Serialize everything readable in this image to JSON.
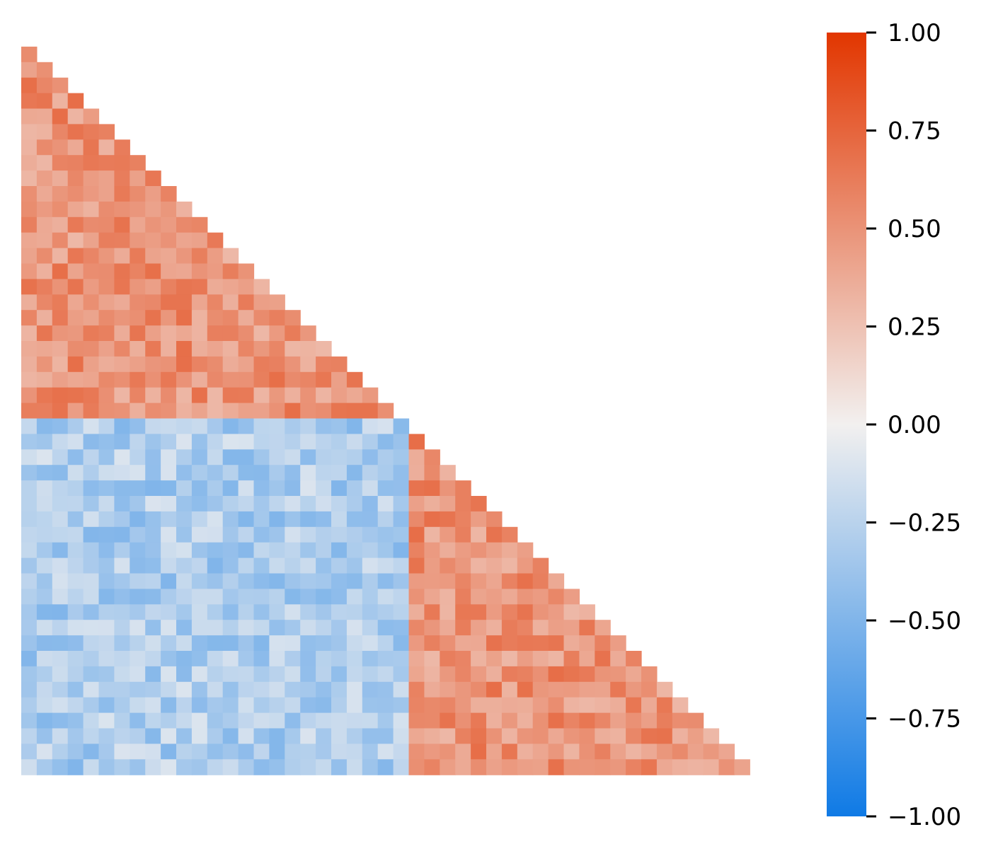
{
  "chart_data": {
    "type": "heatmap",
    "shape": "lower-triangle",
    "n": 48,
    "block_size": 25,
    "palette": {
      "negative": "#0f7ae5",
      "zero": "#f2f0ef",
      "positive": "#e23600"
    },
    "within_block_mean": 0.5,
    "between_block_mean": -0.3,
    "noise_amplitude": 0.2,
    "colorbar": {
      "vmin": -1.0,
      "vmax": 1.0,
      "ticks": [
        1.0,
        0.75,
        0.5,
        0.25,
        0.0,
        -0.25,
        -0.5,
        -0.75,
        -1.0
      ],
      "tick_labels": [
        "1.00",
        "0.75",
        "0.50",
        "0.25",
        "0.00",
        "−0.25",
        "−0.50",
        "−0.75",
        "−1.00"
      ]
    }
  }
}
